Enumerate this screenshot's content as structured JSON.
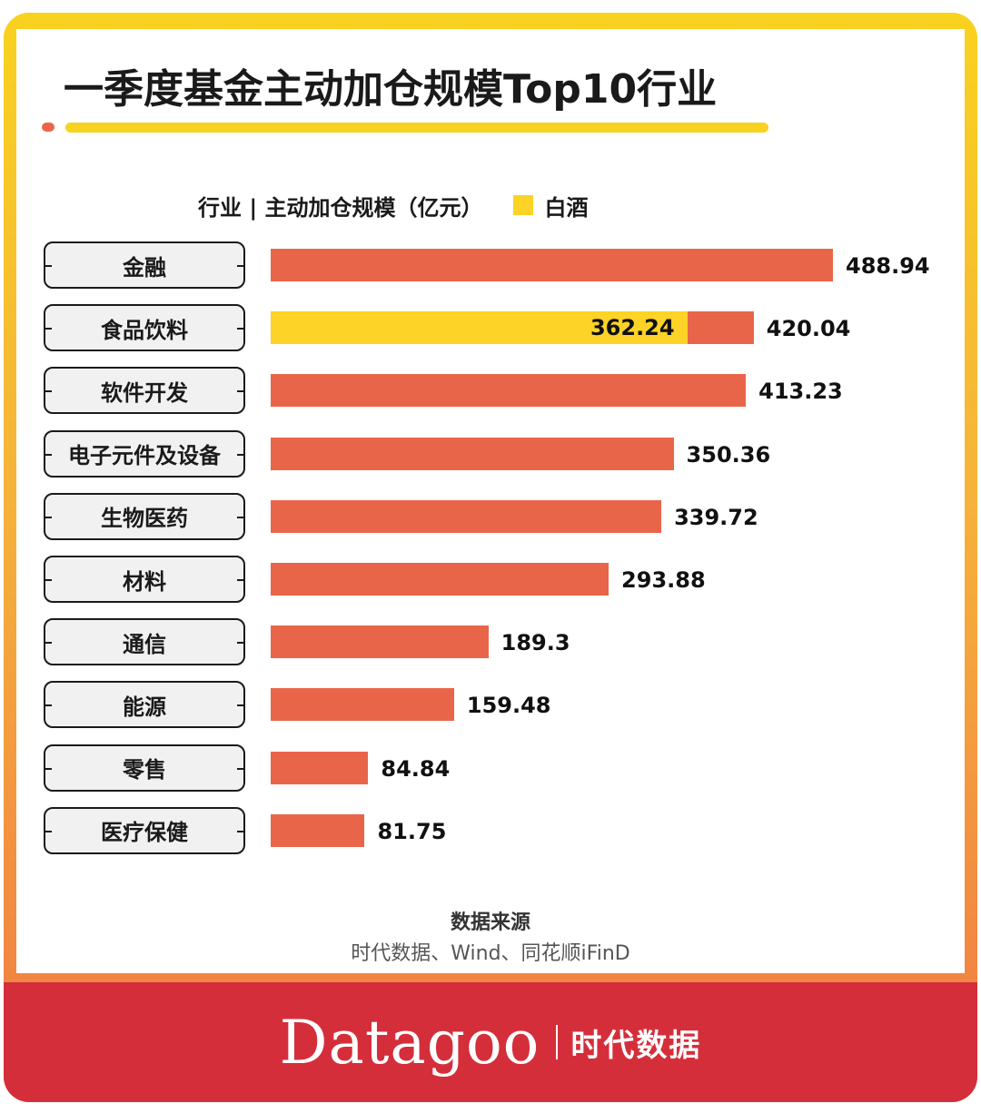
{
  "title": "一季度基金主动加仓规模Top10行业",
  "legend": {
    "header": "行业 | 主动加仓规模（亿元）",
    "highlight_label": "白酒"
  },
  "colors": {
    "bar": "#e9654a",
    "highlight": "#fcd326",
    "accent_bar": "#f8d21f",
    "dot": "#ec6548",
    "footer": "#d52e3b"
  },
  "chart_data": {
    "type": "bar",
    "orientation": "horizontal",
    "categories": [
      "金融",
      "食品饮料",
      "软件开发",
      "电子元件及设备",
      "生物医药",
      "材料",
      "通信",
      "能源",
      "零售",
      "医疗保健"
    ],
    "values": [
      488.94,
      420.04,
      413.23,
      350.36,
      339.72,
      293.88,
      189.3,
      159.48,
      84.84,
      81.75
    ],
    "value_labels": [
      "488.94",
      "420.04",
      "413.23",
      "350.36",
      "339.72",
      "293.88",
      "189.3",
      "159.48",
      "84.84",
      "81.75"
    ],
    "highlight": {
      "category": "食品饮料",
      "name": "白酒",
      "value": 362.24,
      "label": "362.24"
    },
    "xlim": [
      0,
      488.94
    ]
  },
  "source": {
    "title": "数据来源",
    "text": "时代数据、Wind、同花顺iFinD"
  },
  "footer": {
    "brand": "Datagoo",
    "brand_cn": "时代数据"
  }
}
